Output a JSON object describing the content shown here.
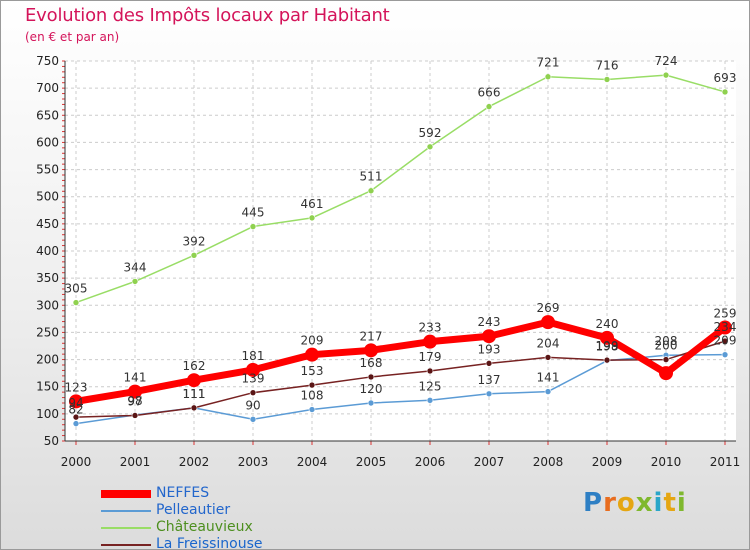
{
  "title": "Evolution des Impôts locaux par Habitant",
  "subtitle": "(en € et par an)",
  "logo_text": "Proxiti",
  "chart_data": {
    "type": "line",
    "x": [
      "2000",
      "2001",
      "2002",
      "2003",
      "2004",
      "2005",
      "2006",
      "2007",
      "2008",
      "2009",
      "2010",
      "2011"
    ],
    "ylim": [
      50,
      750
    ],
    "yticks": [
      50,
      100,
      150,
      200,
      250,
      300,
      350,
      400,
      450,
      500,
      550,
      600,
      650,
      700,
      750
    ],
    "grid": true,
    "legend_position": "bottom-left",
    "series": [
      {
        "name": "NEFFES",
        "color": "#ff0000",
        "values": [
          123,
          141,
          162,
          181,
          209,
          217,
          233,
          243,
          269,
          240,
          175,
          259
        ],
        "labels": [
          "123",
          "141",
          "162",
          "181",
          "209",
          "217",
          "233",
          "243",
          "269",
          "240",
          "",
          "259"
        ]
      },
      {
        "name": "Pelleautier",
        "color": "#5b9bd5",
        "values": [
          82,
          98,
          111,
          90,
          108,
          120,
          125,
          137,
          141,
          198,
          208,
          209
        ],
        "labels": [
          "82",
          "98",
          "111",
          "90",
          "108",
          "120",
          "125",
          "137",
          "141",
          "198",
          "208",
          "209"
        ]
      },
      {
        "name": "Châteauvieux",
        "color": "#99dd66",
        "values": [
          305,
          344,
          392,
          445,
          461,
          511,
          592,
          666,
          721,
          716,
          724,
          693
        ],
        "labels": [
          "305",
          "344",
          "392",
          "445",
          "461",
          "511",
          "592",
          "666",
          "721",
          "716",
          "724",
          "693"
        ]
      },
      {
        "name": "La Freissinouse",
        "color": "#772222",
        "values": [
          94,
          97,
          111,
          139,
          153,
          168,
          179,
          193,
          204,
          199,
          200,
          234
        ],
        "labels": [
          "94",
          "97",
          "111",
          "139",
          "153",
          "168",
          "179",
          "193",
          "204",
          "199",
          "200",
          "234"
        ]
      }
    ]
  }
}
